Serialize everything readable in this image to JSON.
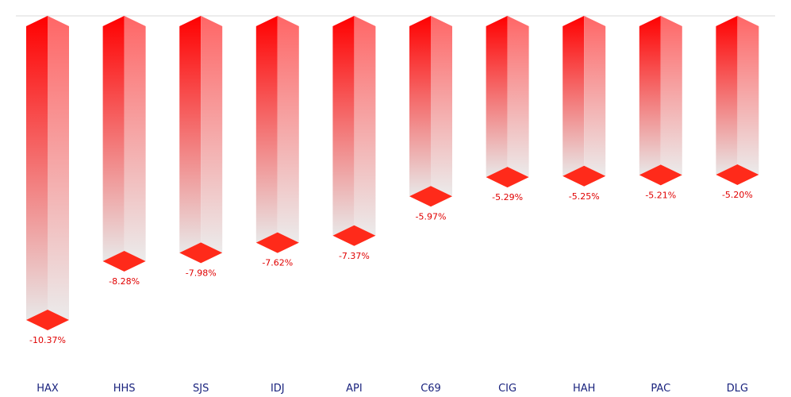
{
  "chart_data": {
    "type": "bar",
    "orientation": "vertical-downward",
    "categories": [
      "HAX",
      "HHS",
      "SJS",
      "IDJ",
      "API",
      "C69",
      "CIG",
      "HAH",
      "PAC",
      "DLG"
    ],
    "values": [
      -10.37,
      -8.28,
      -7.98,
      -7.62,
      -7.37,
      -5.97,
      -5.29,
      -5.25,
      -5.21,
      -5.2
    ],
    "value_labels": [
      "-10.37%",
      "-8.28%",
      "-7.98%",
      "-7.62%",
      "-7.37%",
      "-5.97%",
      "-5.29%",
      "-5.25%",
      "-5.21%",
      "-5.20%"
    ],
    "title": "",
    "xlabel": "",
    "ylabel": "",
    "ylim": [
      -10.37,
      0
    ],
    "grid": false,
    "legend": "none",
    "bar_style": "3d-gradient",
    "colors": {
      "bar_top": "#ff0000",
      "bar_bottom": "#e8e8e8",
      "side_top": "#ff6666",
      "side_bottom": "#ebebeb",
      "cap": "#ff2a1a",
      "value_label": "#e00000",
      "category_label": "#1a237e",
      "baseline": "#d9d9d9"
    }
  }
}
